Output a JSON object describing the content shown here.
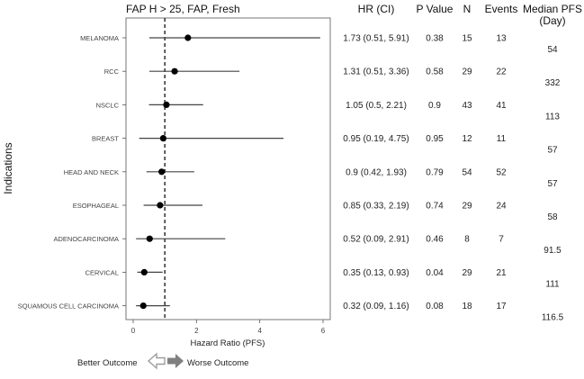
{
  "chart_data": {
    "type": "forest",
    "title": "FAP H > 25, FAP, Fresh",
    "xlabel": "Hazard Ratio (PFS)",
    "ylabel": "Indications",
    "xlim": [
      -0.2,
      6.0
    ],
    "xticks": [
      0,
      2,
      4,
      6
    ],
    "reference_line": 1,
    "columns": {
      "hr_ci": "HR (CI)",
      "p_value": "P Value",
      "n": "N",
      "events": "Events",
      "median_pfs_line1": "Median PFS",
      "median_pfs_line2": "(Day)"
    },
    "rows": [
      {
        "indication": "MELANOMA",
        "hr": 1.73,
        "lower": 0.51,
        "upper": 5.91,
        "hr_ci_text": "1.73 (0.51, 5.91)",
        "p": "0.38",
        "n": "15",
        "events": "13",
        "median": "54"
      },
      {
        "indication": "RCC",
        "hr": 1.31,
        "lower": 0.51,
        "upper": 3.36,
        "hr_ci_text": "1.31 (0.51, 3.36)",
        "p": "0.58",
        "n": "29",
        "events": "22",
        "median": "332"
      },
      {
        "indication": "NSCLC",
        "hr": 1.05,
        "lower": 0.5,
        "upper": 2.21,
        "hr_ci_text": "1.05 (0.5, 2.21)",
        "p": "0.9",
        "n": "43",
        "events": "41",
        "median": "113"
      },
      {
        "indication": "BREAST",
        "hr": 0.95,
        "lower": 0.19,
        "upper": 4.75,
        "hr_ci_text": "0.95 (0.19, 4.75)",
        "p": "0.95",
        "n": "12",
        "events": "11",
        "median": "57"
      },
      {
        "indication": "HEAD AND NECK",
        "hr": 0.9,
        "lower": 0.42,
        "upper": 1.93,
        "hr_ci_text": "0.9 (0.42, 1.93)",
        "p": "0.79",
        "n": "54",
        "events": "52",
        "median": "57"
      },
      {
        "indication": "ESOPHAGEAL",
        "hr": 0.85,
        "lower": 0.33,
        "upper": 2.19,
        "hr_ci_text": "0.85 (0.33, 2.19)",
        "p": "0.74",
        "n": "29",
        "events": "24",
        "median": "58"
      },
      {
        "indication": "ADENOCARCINOMA",
        "hr": 0.52,
        "lower": 0.09,
        "upper": 2.91,
        "hr_ci_text": "0.52 (0.09, 2.91)",
        "p": "0.46",
        "n": "8",
        "events": "7",
        "median": "91.5"
      },
      {
        "indication": "CERVICAL",
        "hr": 0.35,
        "lower": 0.13,
        "upper": 0.93,
        "hr_ci_text": "0.35 (0.13, 0.93)",
        "p": "0.04",
        "n": "29",
        "events": "21",
        "median": "111"
      },
      {
        "indication": "SQUAMOUS CELL CARCINOMA",
        "hr": 0.32,
        "lower": 0.09,
        "upper": 1.16,
        "hr_ci_text": "0.32 (0.09, 1.16)",
        "p": "0.08",
        "n": "18",
        "events": "17",
        "median": "116.5"
      }
    ],
    "legend": {
      "better": "Better Outcome",
      "worse": "Worse Outcome"
    },
    "colors": {
      "marker": "#000000",
      "ci_line": "#444444",
      "ref_line": "#222222",
      "frame": "#555555",
      "better_arrow": "#9e9e9e",
      "worse_arrow": "#808080"
    }
  }
}
